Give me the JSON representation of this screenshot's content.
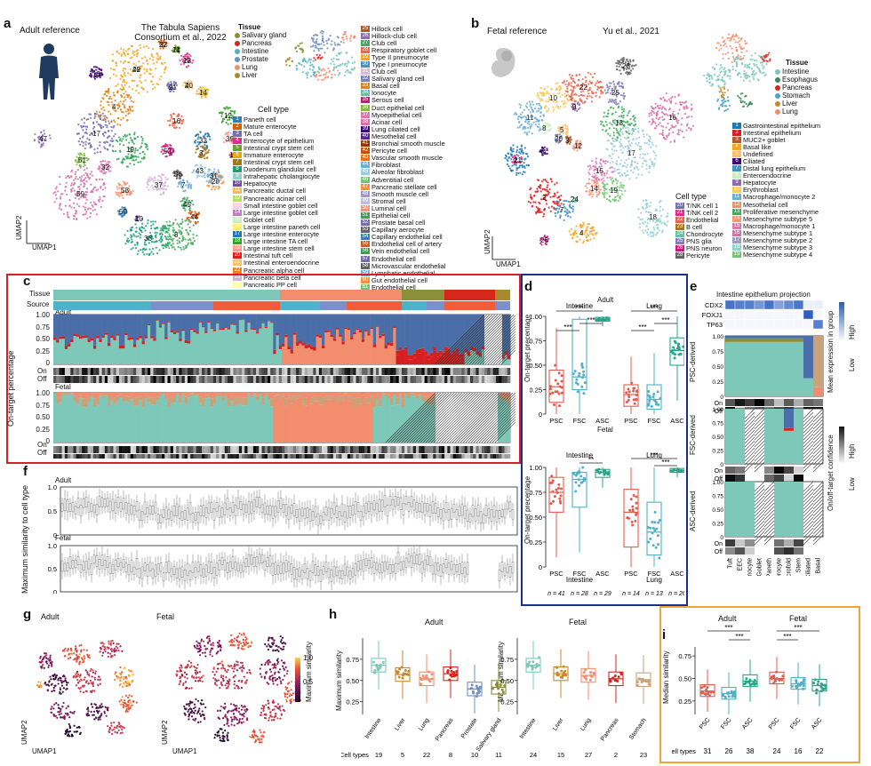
{
  "panels": {
    "a": {
      "letter": "a",
      "title": "Adult reference",
      "source_line1": "The Tabula Sapiens",
      "source_line2": "Consortium et al., 2022",
      "tissue_legend_title": "Tissue",
      "tissues": [
        {
          "name": "Salivary gland",
          "color": "#8a8f3a"
        },
        {
          "name": "Pancreas",
          "color": "#d7261e"
        },
        {
          "name": "Intestine",
          "color": "#4fb3c8"
        },
        {
          "name": "Prostate",
          "color": "#6e8fc0"
        },
        {
          "name": "Lung",
          "color": "#f28e6e"
        },
        {
          "name": "Liver",
          "color": "#a88a2a"
        }
      ],
      "celltype_title": "Cell type",
      "cell_types_col1": [
        {
          "n": "1",
          "name": "Paneth cell",
          "color": "#2c7fb8"
        },
        {
          "n": "2",
          "name": "Mature enterocyte",
          "color": "#d95f02"
        },
        {
          "n": "3",
          "name": "TA cell",
          "color": "#7570b3"
        },
        {
          "n": "4",
          "name": "Enterocyte of epithelium",
          "color": "#e7298a"
        },
        {
          "n": "5",
          "name": "Intestinal crypt stem cell",
          "color": "#66a61e"
        },
        {
          "n": "6",
          "name": "Immature enterocyte",
          "color": "#e6ab02"
        },
        {
          "n": "7",
          "name": "Intestinal crypt stem cell",
          "color": "#a6761d"
        },
        {
          "n": "8",
          "name": "Duodenum glandular cell",
          "color": "#1b9e77"
        },
        {
          "n": "9",
          "name": "Intrahepatic cholangiocyte",
          "color": "#8dd3c7"
        },
        {
          "n": "10",
          "name": "Hepatocyte",
          "color": "#6a51a3"
        },
        {
          "n": "11",
          "name": "Pancreatic ductal cell",
          "color": "#fdb462"
        },
        {
          "n": "12",
          "name": "Pancreatic acinar cell",
          "color": "#b3de69"
        },
        {
          "n": "13",
          "name": "Small intestine goblet cell",
          "color": "#fccde5"
        },
        {
          "n": "14",
          "name": "Large intestine goblet cell",
          "color": "#bc80bd"
        },
        {
          "n": "15",
          "name": "Goblet cell",
          "color": "#ccebc5"
        },
        {
          "n": "16",
          "name": "Large intestine paneth cell",
          "color": "#ffed6f"
        },
        {
          "n": "17",
          "name": "Large intestine enterocyte",
          "color": "#1f78b4"
        },
        {
          "n": "18",
          "name": "Large intestine TA cell",
          "color": "#33a02c"
        },
        {
          "n": "19",
          "name": "Large intestine stem cell",
          "color": "#fb9a99"
        },
        {
          "n": "20",
          "name": "Intestinal tuft cell",
          "color": "#e31a1c"
        },
        {
          "n": "21",
          "name": "Intestinal enteroendocrine",
          "color": "#fdbf6f"
        },
        {
          "n": "22",
          "name": "Pancreatic alpha cell",
          "color": "#ff7f00"
        },
        {
          "n": "23",
          "name": "Pancreatic beta cell",
          "color": "#cab2d6"
        },
        {
          "n": "24",
          "name": "Pancreatic PP cell",
          "color": "#ffff99"
        }
      ],
      "cell_types_col2": [
        {
          "n": "25",
          "name": "Hillock cell",
          "color": "#b15928"
        },
        {
          "n": "26",
          "name": "Hillock-club cell",
          "color": "#8c6bb1"
        },
        {
          "n": "27",
          "name": "Club cell",
          "color": "#41ab5d"
        },
        {
          "n": "28",
          "name": "Respiratory goblet cell",
          "color": "#ef6548"
        },
        {
          "n": "29",
          "name": "Type II pneumocyte",
          "color": "#f7a41c"
        },
        {
          "n": "30",
          "name": "Type I pneumocyte",
          "color": "#4292c6"
        },
        {
          "n": "31",
          "name": "Club cell",
          "color": "#d4b9da"
        },
        {
          "n": "32",
          "name": "Salivary gland cell",
          "color": "#807dba"
        },
        {
          "n": "33",
          "name": "Basal cell",
          "color": "#e08214"
        },
        {
          "n": "34",
          "name": "Ionocyte",
          "color": "#66c2a4"
        },
        {
          "n": "35",
          "name": "Serous cell",
          "color": "#c51b7d"
        },
        {
          "n": "36",
          "name": "Duct epithelial cell",
          "color": "#7fbc41"
        },
        {
          "n": "37",
          "name": "Myoepithelial cell",
          "color": "#de77ae"
        },
        {
          "n": "38",
          "name": "Acinar cell",
          "color": "#d56fa6"
        },
        {
          "n": "39",
          "name": "Lung ciliated cell",
          "color": "#3f007d"
        },
        {
          "n": "40",
          "name": "Mesothelial cell",
          "color": "#54278f"
        },
        {
          "n": "41",
          "name": "Bronchial smooth muscle",
          "color": "#993404"
        },
        {
          "n": "42",
          "name": "Pericyte cell",
          "color": "#cc4c02"
        },
        {
          "n": "43",
          "name": "Vascular smooth muscle",
          "color": "#ec7014"
        },
        {
          "n": "44",
          "name": "Fibroblast",
          "color": "#6baed6"
        },
        {
          "n": "45",
          "name": "Alveolar fibroblast",
          "color": "#9ecae1"
        },
        {
          "n": "46",
          "name": "Adventitial cell",
          "color": "#74c476"
        },
        {
          "n": "47",
          "name": "Pancreatic stellate cell",
          "color": "#fd8d3c"
        },
        {
          "n": "48",
          "name": "Smooth muscle cell",
          "color": "#9e9ac8"
        },
        {
          "n": "49",
          "name": "Stromal cell",
          "color": "#bcbddc"
        },
        {
          "n": "50",
          "name": "Luminal cell",
          "color": "#fc9272"
        },
        {
          "n": "51",
          "name": "Epithelial cell",
          "color": "#31a354"
        },
        {
          "n": "52",
          "name": "Prostate basal cell",
          "color": "#756bb1"
        },
        {
          "n": "53",
          "name": "Capillary aerocyte",
          "color": "#636363"
        },
        {
          "n": "54",
          "name": "Capillary endothelial cell",
          "color": "#3182bd"
        },
        {
          "n": "55",
          "name": "Endothelial cell of artery",
          "color": "#e6550d"
        },
        {
          "n": "56",
          "name": "Vein endothelial cell",
          "color": "#31a354"
        },
        {
          "n": "57",
          "name": "Endothelial cell",
          "color": "#756bb1"
        },
        {
          "n": "58",
          "name": "Microvascular endothelial",
          "color": "#636363"
        },
        {
          "n": "59",
          "name": "Lymphatic endothelial",
          "color": "#6baed6"
        },
        {
          "n": "60",
          "name": "Gut endothelial cell",
          "color": "#fd8d3c"
        },
        {
          "n": "61",
          "name": "Endothelial cell",
          "color": "#74c476"
        },
        {
          "n": "62",
          "name": "Bronchial endothelial",
          "color": "#9e9ac8"
        }
      ],
      "umap_labels": [
        "29",
        "22",
        "24",
        "23",
        "21",
        "2",
        "13",
        "14",
        "12",
        "39",
        "4",
        "17",
        "19",
        "16",
        "33",
        "53",
        "32",
        "51",
        "3",
        "18",
        "37",
        "36",
        "7",
        "43",
        "20",
        "31",
        "58",
        "59",
        "45",
        "47",
        "44",
        "50",
        "38",
        "8",
        "10",
        "42",
        "57",
        "11",
        "12",
        "9",
        "40"
      ],
      "axis_x": "UMAP1",
      "axis_y": "UMAP2"
    },
    "b": {
      "letter": "b",
      "title": "Fetal reference",
      "source": "Yu et al., 2021",
      "tissue_legend_title": "Tissue",
      "tissues": [
        {
          "name": "Intestine",
          "color": "#7dc8b8"
        },
        {
          "name": "Esophagus",
          "color": "#3a8a5c"
        },
        {
          "name": "Pancreas",
          "color": "#d7261e"
        },
        {
          "name": "Stomach",
          "color": "#4aa1c8"
        },
        {
          "name": "Liver",
          "color": "#c78a2a"
        },
        {
          "name": "Lung",
          "color": "#f28e6e"
        }
      ],
      "celltype_title": "Cell type",
      "cell_types_col1": [
        {
          "n": "20",
          "name": "T/NK cell 1",
          "color": "#7570b3"
        },
        {
          "n": "21",
          "name": "T/NK cell 2",
          "color": "#e7298a"
        },
        {
          "n": "22",
          "name": "Endothelial",
          "color": "#e6614a"
        },
        {
          "n": "23",
          "name": "B cell",
          "color": "#a6761d"
        },
        {
          "n": "24",
          "name": "Chondrocyte",
          "color": "#66c2a4"
        },
        {
          "n": "25",
          "name": "PNS glia",
          "color": "#807dba"
        },
        {
          "n": "26",
          "name": "PNS neuron",
          "color": "#c51b7d"
        },
        {
          "n": "28",
          "name": "Pericyte",
          "color": "#636363"
        }
      ],
      "cell_types_col2": [
        {
          "n": "1",
          "name": "Gastrointestinal epithelium",
          "color": "#1f78b4"
        },
        {
          "n": "2",
          "name": "Intestinal epithelium",
          "color": "#e31a1c"
        },
        {
          "n": "3",
          "name": "MUC2+ goblet",
          "color": "#b15928"
        },
        {
          "n": "4",
          "name": "Basal like",
          "color": "#f7a41c"
        },
        {
          "n": "5",
          "name": "Undefined",
          "color": "#fdbf6f"
        },
        {
          "n": "6",
          "name": "Ciliated",
          "color": "#3f007d"
        },
        {
          "n": "7",
          "name": "Distal lung epithelium",
          "color": "#4292c6"
        },
        {
          "n": "8",
          "name": "Enteroendocrine",
          "color": "#ccebc5"
        },
        {
          "n": "9",
          "name": "Hepatocyte",
          "color": "#8c6bb1"
        },
        {
          "n": "10",
          "name": "Erythroblast",
          "color": "#f7c95e"
        },
        {
          "n": "11",
          "name": "Macrophage/monocyte 2",
          "color": "#6baed6"
        },
        {
          "n": "12",
          "name": "Mesothelial cell",
          "color": "#f28e6e"
        },
        {
          "n": "13",
          "name": "Proliferative mesenchyme",
          "color": "#41ab5d"
        },
        {
          "n": "14",
          "name": "Mesenchyme subtype 5",
          "color": "#fc9272"
        },
        {
          "n": "15",
          "name": "Macrophage/monocyte 1",
          "color": "#de77ae"
        },
        {
          "n": "16",
          "name": "Mesenchyme subtype 1",
          "color": "#d56fa6"
        },
        {
          "n": "17",
          "name": "Mesenchyme subtype 2",
          "color": "#9e9ac8"
        },
        {
          "n": "18",
          "name": "Mesenchyme subtype 3",
          "color": "#8dd3c7"
        },
        {
          "n": "19",
          "name": "Mesenchyme subtype 4",
          "color": "#74c476"
        }
      ],
      "umap_labels": [
        "23",
        "22",
        "25",
        "10",
        "9",
        "13",
        "16",
        "11",
        "8",
        "5",
        "20",
        "6",
        "1",
        "3",
        "12",
        "17",
        "21",
        "2",
        "15",
        "14",
        "19",
        "7",
        "24",
        "18",
        "4",
        "26"
      ],
      "axis_x": "UMAP1",
      "axis_y": "UMAP2"
    },
    "c": {
      "letter": "c",
      "row_tissue": "Tissue",
      "row_source": "Source",
      "adult": "Adult",
      "fetal": "Fetal",
      "ylabel": "On-target percentage",
      "yticks": [
        "1.00",
        "0.75",
        "0.50",
        "0.25",
        "0"
      ],
      "on": "On",
      "off": "Off"
    },
    "d": {
      "letter": "d",
      "adult": "Adult",
      "fetal": "Fetal",
      "ylabel": "On-target precentage",
      "yticks": [
        "1.00",
        "0.75",
        "0.50",
        "0.25",
        "0"
      ],
      "groups": [
        "Intestine",
        "Lung"
      ],
      "methods": [
        "PSC",
        "FSC",
        "ASC"
      ],
      "sig": [
        "***",
        "***",
        "***",
        "***",
        "***",
        "***",
        "**",
        "***",
        "***"
      ],
      "n_values": [
        "n = 41",
        "n = 28",
        "n = 29",
        "n = 14",
        "n = 13",
        "n = 26"
      ]
    },
    "e": {
      "letter": "e",
      "title": "Intestine epithelium projection",
      "genes": [
        "CDX2",
        "FOXJ1",
        "TP63"
      ],
      "heat_title": "Mean expression in group",
      "heat_high": "High",
      "heat_low": "Low",
      "conf_title": "On/off-target confidence",
      "conf_high": "High",
      "conf_low": "Low",
      "ylabels": [
        "PSC-derived",
        "FSC-derived",
        "ASC-derived"
      ],
      "on": "On",
      "off": "Off",
      "xcats": [
        "Tuft",
        "EEC",
        "Colonocyte",
        "Goblet",
        "Paneth",
        "Enterocyte",
        "Microfold",
        "Stem",
        "Ciliated",
        "Basal"
      ]
    },
    "f": {
      "letter": "f",
      "adult": "Adult",
      "fetal": "Fetal",
      "ylabel": "Maximum similarity to cell type",
      "yticks_adult": [
        "1.0",
        "0.5",
        "0"
      ],
      "yticks_fetal": [
        "1.0",
        "0.5",
        "0"
      ]
    },
    "g": {
      "letter": "g",
      "adult": "Adult",
      "fetal": "Fetal",
      "cbar_title": "Maximum similarity",
      "cbar_ticks": [
        "1.0",
        "0.5"
      ],
      "axis_x": "UMAP1",
      "axis_y": "UMAP2"
    },
    "h": {
      "letter": "h",
      "adult": "Adult",
      "fetal": "Fetal",
      "ylabel": "Maximum similarity",
      "yticks": [
        "0.75",
        "0.50",
        "0.25"
      ],
      "celltypes_label": "Cell types"
    },
    "i": {
      "letter": "i",
      "adult": "Adult",
      "fetal": "Fetal",
      "ylabel": "Median similarity",
      "yticks": [
        "0.75",
        "0.50",
        "0.25"
      ],
      "sig": [
        "***",
        "***",
        "***",
        "***"
      ],
      "methods": [
        "PSC",
        "FSC",
        "ASC",
        "PSC",
        "FSC",
        "ASC"
      ],
      "celltypes_label": "Cell types",
      "counts": [
        "31",
        "26",
        "38",
        "24",
        "16",
        "22"
      ]
    }
  },
  "chart_data": [
    {
      "type": "bar",
      "panel": "h-adult",
      "title": "Adult",
      "ylabel": "Maximum similarity",
      "categories": [
        "Intestine",
        "Liver",
        "Lung",
        "Pancreas",
        "Prostate",
        "Salivary gland"
      ],
      "values": [
        0.68,
        0.57,
        0.52,
        0.58,
        0.4,
        0.42
      ],
      "colors": [
        "#7dc8b8",
        "#c78a2a",
        "#f28e6e",
        "#d7261e",
        "#6e8fc0",
        "#8a8f3a"
      ],
      "cell_type_counts": [
        "19",
        "5",
        "22",
        "8",
        "10",
        "11"
      ],
      "ylim": [
        0.1,
        1.0
      ]
    },
    {
      "type": "bar",
      "panel": "h-fetal",
      "title": "Fetal",
      "ylabel": "Maximum similarity",
      "categories": [
        "Intestine",
        "Liver",
        "Lung",
        "Pancreas",
        "Stomach"
      ],
      "values": [
        0.68,
        0.58,
        0.56,
        0.52,
        0.51
      ],
      "colors": [
        "#7dc8b8",
        "#c78a2a",
        "#f28e6e",
        "#d7261e",
        "#c9a27a"
      ],
      "cell_type_counts": [
        "24",
        "15",
        "27",
        "2",
        "23"
      ],
      "ylim": [
        0.1,
        1.0
      ]
    },
    {
      "type": "bar",
      "panel": "i",
      "ylabel": "Median similarity",
      "categories": [
        "Adult PSC",
        "Adult FSC",
        "Adult ASC",
        "Fetal PSC",
        "Fetal FSC",
        "Fetal ASC"
      ],
      "values": [
        0.36,
        0.33,
        0.47,
        0.5,
        0.44,
        0.42
      ],
      "colors": [
        "#e35b4f",
        "#4fb0c6",
        "#2aa58a",
        "#e35b4f",
        "#4fb0c6",
        "#2aa58a"
      ],
      "ylim": [
        0.1,
        0.85
      ]
    },
    {
      "type": "bar",
      "panel": "d",
      "ylabel": "On-target precentage",
      "categories": [
        "Adult Intestine PSC",
        "Adult Intestine FSC",
        "Adult Intestine ASC",
        "Adult Lung PSC",
        "Adult Lung FSC",
        "Adult Lung ASC",
        "Fetal Intestine PSC",
        "Fetal Intestine FSC",
        "Fetal Intestine ASC",
        "Fetal Lung PSC",
        "Fetal Lung FSC",
        "Fetal Lung ASC"
      ],
      "values": [
        0.28,
        0.38,
        0.97,
        0.2,
        0.15,
        0.65,
        0.75,
        0.88,
        0.95,
        0.55,
        0.35,
        0.97
      ],
      "ylim": [
        0,
        1
      ]
    }
  ]
}
